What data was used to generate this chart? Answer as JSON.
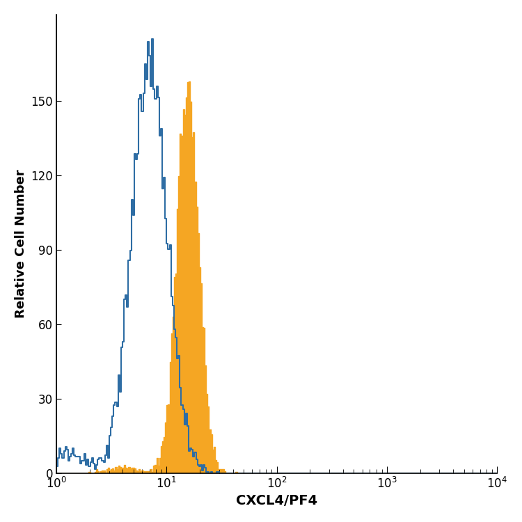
{
  "xlabel": "CXCL4/PF4",
  "ylabel": "Relative Cell Number",
  "xlim_log": [
    1.0,
    10000.0
  ],
  "ylim": [
    0,
    185
  ],
  "yticks": [
    0,
    30,
    60,
    90,
    120,
    150
  ],
  "xtick_majors": [
    1,
    10,
    100,
    1000,
    10000
  ],
  "xtick_labels": [
    "10$^0$",
    "10$^1$",
    "10$^2$",
    "10$^3$",
    "10$^4$"
  ],
  "blue_color": "#2e6da4",
  "orange_color": "#f5a623",
  "background_color": "#ffffff",
  "blue_peak_height": 175,
  "orange_peak_height": 158,
  "blue_log_mean": 0.845,
  "blue_log_std": 0.16,
  "orange_log_mean": 1.19,
  "orange_log_std": 0.1,
  "n_bins": 300,
  "xlabel_fontsize": 14,
  "ylabel_fontsize": 13,
  "tick_fontsize": 12
}
